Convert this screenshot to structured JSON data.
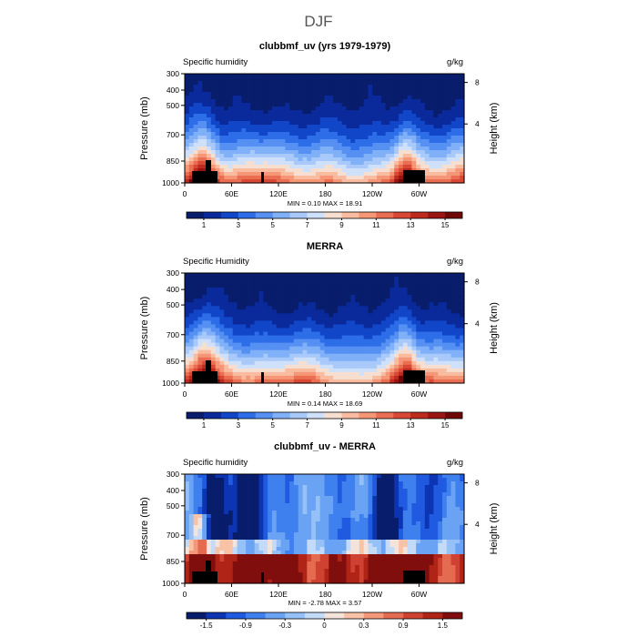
{
  "figure": {
    "title": "DJF"
  },
  "palettes": {
    "abs": [
      "#081d6b",
      "#0a2a9c",
      "#1246c8",
      "#2d6ee8",
      "#5590f2",
      "#80b0f7",
      "#a8c9fa",
      "#cfe0fb",
      "#f6dfd0",
      "#f9bca0",
      "#f59676",
      "#ea6e52",
      "#d84835",
      "#bd2b1f",
      "#9a1412",
      "#6e0706"
    ],
    "diff": [
      "#081d6b",
      "#0d35b3",
      "#1f5ae0",
      "#3f80ef",
      "#6aa2f4",
      "#96c0f8",
      "#c3daf9",
      "#f3e3da",
      "#f8c2a7",
      "#f3987a",
      "#e56b50",
      "#cf4130",
      "#b02418",
      "#800e0c"
    ]
  },
  "chart_data": [
    {
      "type": "heatmap",
      "title": "clubbmf_uv (yrs 1979-1979)",
      "left_label": "Specific humidity",
      "right_label": "g/kg",
      "ylabel": "Pressure (mb)",
      "ylabel_right": "Height (km)",
      "yticks": [
        "300",
        "400",
        "500",
        "700",
        "850",
        "1000"
      ],
      "yticks_right": [
        "8",
        "4"
      ],
      "xticks": [
        "0",
        "60E",
        "120E",
        "180",
        "120W",
        "60W"
      ],
      "stats": "MIN =    0.10   MAX =   18.91",
      "colorbar_labels": [
        "1",
        "3",
        "5",
        "7",
        "9",
        "11",
        "13",
        "15"
      ],
      "colorbar_levels": [
        0,
        1,
        2,
        3,
        4,
        5,
        6,
        7,
        8,
        9,
        10,
        11,
        12,
        13,
        14,
        15,
        16
      ],
      "palette": "abs"
    },
    {
      "type": "heatmap",
      "title": "MERRA",
      "left_label": "Specific Humidity",
      "right_label": "g/kg",
      "ylabel": "Pressure (mb)",
      "ylabel_right": "Height (km)",
      "yticks": [
        "300",
        "400",
        "500",
        "700",
        "850",
        "1000"
      ],
      "yticks_right": [
        "8",
        "4"
      ],
      "xticks": [
        "0",
        "60E",
        "120E",
        "180",
        "120W",
        "60W"
      ],
      "stats": "MIN =    0.14   MAX =   18.69",
      "colorbar_labels": [
        "1",
        "3",
        "5",
        "7",
        "9",
        "11",
        "13",
        "15"
      ],
      "colorbar_levels": [
        0,
        1,
        2,
        3,
        4,
        5,
        6,
        7,
        8,
        9,
        10,
        11,
        12,
        13,
        14,
        15,
        16
      ],
      "palette": "abs"
    },
    {
      "type": "heatmap",
      "title": "clubbmf_uv - MERRA",
      "left_label": "Specific humidity",
      "right_label": "g/kg",
      "ylabel": "Pressure (mb)",
      "ylabel_right": "Height (km)",
      "yticks": [
        "300",
        "400",
        "500",
        "700",
        "850",
        "1000"
      ],
      "yticks_right": [
        "8",
        "4"
      ],
      "xticks": [
        "0",
        "60E",
        "120E",
        "180",
        "120W",
        "60W"
      ],
      "stats": "MIN =  -2.78   MAX =    3.57",
      "colorbar_labels": [
        "-1.5",
        "-0.9",
        "-0.3",
        "0",
        "0.3",
        "0.9",
        "1.5"
      ],
      "colorbar_levels": [
        -2.1,
        -1.5,
        -1.2,
        -0.9,
        -0.6,
        -0.3,
        -0.15,
        0,
        0.15,
        0.3,
        0.6,
        0.9,
        1.2,
        1.5,
        2.1
      ],
      "palette": "diff"
    }
  ]
}
